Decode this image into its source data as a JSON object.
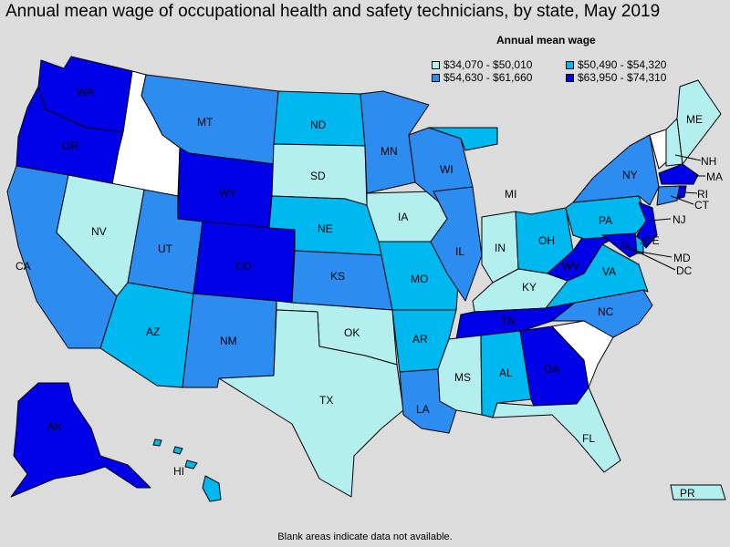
{
  "title": "Annual mean wage of occupational health and safety technicians, by state, May 2019",
  "legend": {
    "title": "Annual mean wage",
    "items": [
      {
        "label": "$34,070 - $50,010",
        "color": "#b3efef"
      },
      {
        "label": "$50,490 - $54,320",
        "color": "#00b8f0"
      },
      {
        "label": "$54,630 - $61,660",
        "color": "#2d8cf0"
      },
      {
        "label": "$63,950 - $74,310",
        "color": "#0000e8"
      }
    ]
  },
  "no_data_color": "#ffffff",
  "footnote": "Blank areas indicate data not available.",
  "states": {
    "WA": {
      "label": "WA",
      "tier": 4
    },
    "OR": {
      "label": "OR",
      "tier": 4
    },
    "ID": {
      "label": "",
      "tier": 0
    },
    "MT": {
      "label": "MT",
      "tier": 3
    },
    "WY": {
      "label": "WY",
      "tier": 4
    },
    "CA": {
      "label": "CA",
      "tier": 3
    },
    "NV": {
      "label": "NV",
      "tier": 1
    },
    "UT": {
      "label": "UT",
      "tier": 3
    },
    "AZ": {
      "label": "AZ",
      "tier": 2
    },
    "CO": {
      "label": "CO",
      "tier": 4
    },
    "NM": {
      "label": "NM",
      "tier": 3
    },
    "ND": {
      "label": "ND",
      "tier": 2
    },
    "SD": {
      "label": "SD",
      "tier": 1
    },
    "NE": {
      "label": "NE",
      "tier": 2
    },
    "KS": {
      "label": "KS",
      "tier": 3
    },
    "OK": {
      "label": "OK",
      "tier": 1
    },
    "TX": {
      "label": "TX",
      "tier": 1
    },
    "MN": {
      "label": "MN",
      "tier": 3
    },
    "IA": {
      "label": "IA",
      "tier": 1
    },
    "MO": {
      "label": "MO",
      "tier": 2
    },
    "AR": {
      "label": "AR",
      "tier": 2
    },
    "LA": {
      "label": "LA",
      "tier": 3
    },
    "WI": {
      "label": "WI",
      "tier": 3
    },
    "IL": {
      "label": "IL",
      "tier": 3
    },
    "MI": {
      "label": "MI",
      "tier": 2
    },
    "IN": {
      "label": "IN",
      "tier": 1
    },
    "OH": {
      "label": "OH",
      "tier": 2
    },
    "KY": {
      "label": "KY",
      "tier": 1
    },
    "TN": {
      "label": "TN",
      "tier": 4
    },
    "MS": {
      "label": "MS",
      "tier": 1
    },
    "AL": {
      "label": "AL",
      "tier": 2
    },
    "GA": {
      "label": "GA",
      "tier": 4
    },
    "FL": {
      "label": "FL",
      "tier": 1
    },
    "SC": {
      "label": "",
      "tier": 0
    },
    "NC": {
      "label": "NC",
      "tier": 3
    },
    "VA": {
      "label": "VA",
      "tier": 2
    },
    "WV": {
      "label": "WV",
      "tier": 4
    },
    "PA": {
      "label": "PA",
      "tier": 2
    },
    "NY": {
      "label": "NY",
      "tier": 3
    },
    "VT": {
      "label": "",
      "tier": 0
    },
    "NH": {
      "label": "NH",
      "tier": 1
    },
    "ME": {
      "label": "ME",
      "tier": 1
    },
    "MA": {
      "label": "MA",
      "tier": 4
    },
    "RI": {
      "label": "RI",
      "tier": 4
    },
    "CT": {
      "label": "CT",
      "tier": 3
    },
    "NJ": {
      "label": "NJ",
      "tier": 4
    },
    "DE": {
      "label": "DE",
      "tier": 2
    },
    "MD": {
      "label": "MD",
      "tier": 4
    },
    "DC": {
      "label": "DC",
      "tier": 4
    },
    "AK": {
      "label": "AK",
      "tier": 4
    },
    "HI": {
      "label": "HI",
      "tier": 2
    },
    "PR": {
      "label": "PR",
      "tier": 1
    }
  }
}
